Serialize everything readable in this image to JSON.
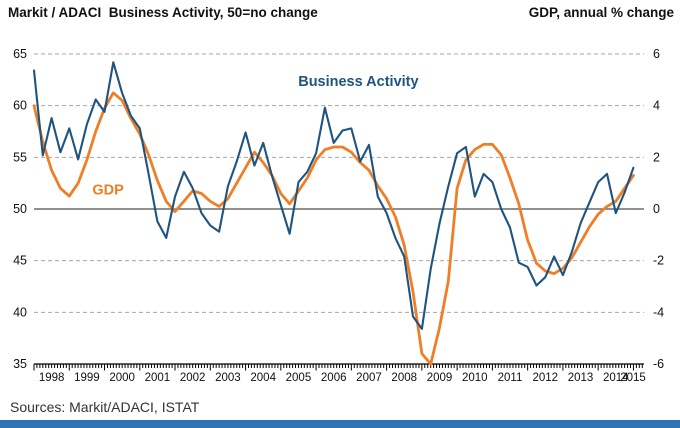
{
  "header": {
    "title_left": "Markit / ADACI  Business Activity, 50=no change",
    "title_right": "GDP, annual % change"
  },
  "footer": {
    "sources": "Sources: Markit/ADACI, ISTAT",
    "accent_bar_color": "#2e74b5"
  },
  "colors": {
    "business_activity": "#1f5480",
    "gdp": "#f07e26",
    "gridline": "#a6a6a6",
    "zero_line": "#4d4d4d",
    "axis": "#000000"
  },
  "chart_data": {
    "type": "line",
    "title": "Markit / ADACI Business Activity vs GDP",
    "legend_position": "labels on chart",
    "grid": "dashed horizontal",
    "x_axis": {
      "min": 1998,
      "max": 2015.3,
      "years": [
        1998,
        1999,
        2000,
        2001,
        2002,
        2003,
        2004,
        2005,
        2006,
        2007,
        2008,
        2009,
        2010,
        2011,
        2012,
        2013,
        2014,
        2015
      ],
      "minor_tick_interval_months": 1
    },
    "left_axis": {
      "label": "Business Activity index, 50 = no change",
      "min": 35,
      "max": 65,
      "ticks": [
        65,
        60,
        55,
        50,
        45,
        40,
        35
      ]
    },
    "right_axis": {
      "label": "GDP, annual % change",
      "min": -6,
      "max": 6,
      "ticks": [
        6,
        4,
        2,
        0,
        -2,
        -4,
        -6
      ]
    },
    "gridlines": {
      "dashed_at": [
        40,
        45,
        55,
        60,
        65
      ],
      "solid_at": 50
    },
    "x": [
      1998,
      1998.25,
      1998.5,
      1998.75,
      1999,
      1999.25,
      1999.5,
      1999.75,
      2000,
      2000.25,
      2000.5,
      2000.75,
      2001,
      2001.25,
      2001.5,
      2001.75,
      2002,
      2002.25,
      2002.5,
      2002.75,
      2003,
      2003.25,
      2003.5,
      2003.75,
      2004,
      2004.25,
      2004.5,
      2004.75,
      2005,
      2005.25,
      2005.5,
      2005.75,
      2006,
      2006.25,
      2006.5,
      2006.75,
      2007,
      2007.25,
      2007.5,
      2007.75,
      2008,
      2008.25,
      2008.5,
      2008.75,
      2009,
      2009.25,
      2009.5,
      2009.75,
      2010,
      2010.25,
      2010.5,
      2010.75,
      2011,
      2011.25,
      2011.5,
      2011.75,
      2012,
      2012.25,
      2012.5,
      2012.75,
      2013,
      2013.25,
      2013.5,
      2013.75,
      2014,
      2014.25,
      2014.5,
      2014.75,
      2015
    ],
    "series": [
      {
        "name": "GDP",
        "axis": "right",
        "color": "#f07e26",
        "width": 2.8,
        "values": [
          4.0,
          2.6,
          1.5,
          0.8,
          0.5,
          1.0,
          1.9,
          3.0,
          3.9,
          4.5,
          4.2,
          3.5,
          2.9,
          2.1,
          1.1,
          0.3,
          -0.1,
          0.3,
          0.7,
          0.6,
          0.3,
          0.1,
          0.4,
          1.0,
          1.6,
          2.2,
          1.8,
          1.3,
          0.6,
          0.2,
          0.7,
          1.2,
          1.9,
          2.3,
          2.4,
          2.4,
          2.2,
          1.8,
          1.5,
          0.9,
          0.4,
          -0.3,
          -1.4,
          -3.2,
          -5.6,
          -6.0,
          -4.6,
          -2.8,
          0.8,
          1.9,
          2.3,
          2.5,
          2.5,
          2.1,
          1.2,
          0.2,
          -1.2,
          -2.1,
          -2.4,
          -2.5,
          -2.3,
          -1.9,
          -1.3,
          -0.7,
          -0.2,
          0.1,
          0.3,
          0.8,
          1.3
        ]
      },
      {
        "name": "Business Activity",
        "axis": "left",
        "color": "#1f5480",
        "width": 2.1,
        "values": [
          63.4,
          55.2,
          58.8,
          55.5,
          57.8,
          54.8,
          58.2,
          60.6,
          59.4,
          64.2,
          61.2,
          59.0,
          57.8,
          53.4,
          48.8,
          47.2,
          51.2,
          53.6,
          52.0,
          49.6,
          48.4,
          47.8,
          52.2,
          54.6,
          57.4,
          54.2,
          56.4,
          53.2,
          50.4,
          47.6,
          52.6,
          53.6,
          55.4,
          59.8,
          56.4,
          57.6,
          57.8,
          54.6,
          56.2,
          51.2,
          49.6,
          47.2,
          45.4,
          39.6,
          38.4,
          44.2,
          48.6,
          52.2,
          55.4,
          56.0,
          51.2,
          53.4,
          52.6,
          50.0,
          48.2,
          44.8,
          44.4,
          42.6,
          43.4,
          45.4,
          43.6,
          45.8,
          48.6,
          50.6,
          52.6,
          53.4,
          49.6,
          51.6,
          54.0
        ]
      }
    ],
    "annotations": [
      {
        "text": "Business Activity",
        "x": 2007.2,
        "y": 62.3,
        "axis": "left",
        "color": "#1f5480"
      },
      {
        "text": "GDP",
        "x": 2000.1,
        "y": 51.8,
        "axis": "left",
        "color": "#f07e26"
      }
    ]
  }
}
